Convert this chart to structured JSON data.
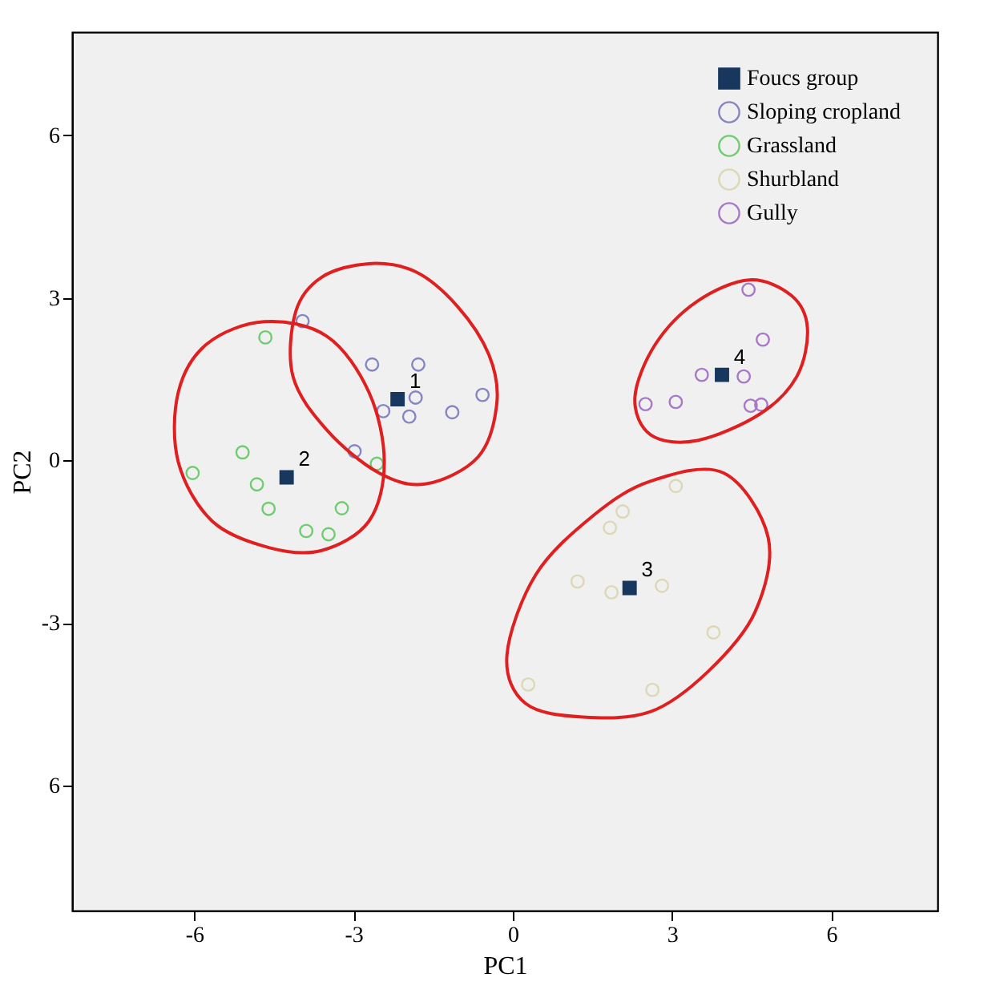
{
  "chart_data": {
    "type": "scatter",
    "xlabel": "PC1",
    "ylabel": "PC2",
    "xlim": [
      -8.3,
      8.0
    ],
    "ylim": [
      -8.3,
      7.9
    ],
    "xticks": [
      -6,
      -3,
      0,
      3,
      6
    ],
    "yticks": [
      {
        "value": -6,
        "label": "6"
      },
      -3,
      0,
      3,
      6
    ],
    "grid": false,
    "legend": "top right",
    "series": [
      {
        "name": "Foucs group",
        "color": "#17375e",
        "marker": "square",
        "x": [
          -2.17,
          -4.26,
          2.2,
          3.94
        ],
        "values": [
          1.13,
          -0.31,
          -2.35,
          1.58
        ]
      },
      {
        "name": "Sloping cropland",
        "color": "#8585c2",
        "marker": "circle",
        "x": [
          -3.96,
          -2.65,
          -1.78,
          -1.83,
          -2.44,
          -1.95,
          -1.14,
          -0.57,
          -2.98
        ],
        "values": [
          2.57,
          1.77,
          1.77,
          1.16,
          0.91,
          0.81,
          0.89,
          1.21,
          0.17
        ]
      },
      {
        "name": "Grassland",
        "color": "#70cc70",
        "marker": "circle",
        "x": [
          -4.66,
          -5.09,
          -6.03,
          -4.82,
          -4.6,
          -3.89,
          -3.47,
          -3.22,
          -2.56
        ],
        "values": [
          2.27,
          0.15,
          -0.23,
          -0.44,
          -0.89,
          -1.3,
          -1.36,
          -0.88,
          -0.06
        ]
      },
      {
        "name": "Shurbland",
        "color": "#ddd8b4",
        "marker": "circle",
        "x": [
          3.07,
          2.07,
          1.83,
          1.22,
          1.86,
          2.81,
          3.78,
          0.29,
          2.63
        ],
        "values": [
          -0.47,
          -0.94,
          -1.24,
          -2.23,
          -2.43,
          -2.31,
          -3.17,
          -4.13,
          -4.23
        ]
      },
      {
        "name": "Gully",
        "color": "#a878c8",
        "marker": "circle",
        "x": [
          4.44,
          4.71,
          3.56,
          4.35,
          2.5,
          3.07,
          4.48,
          4.68
        ],
        "values": [
          3.15,
          2.23,
          1.58,
          1.55,
          1.04,
          1.08,
          1.01,
          1.03
        ]
      }
    ],
    "annotations": [
      {
        "text": "1",
        "x": -2.17,
        "y": 1.13
      },
      {
        "text": "2",
        "x": -4.26,
        "y": -0.31
      },
      {
        "text": "3",
        "x": 2.2,
        "y": -2.35
      },
      {
        "text": "4",
        "x": 3.94,
        "y": 1.58
      }
    ]
  }
}
